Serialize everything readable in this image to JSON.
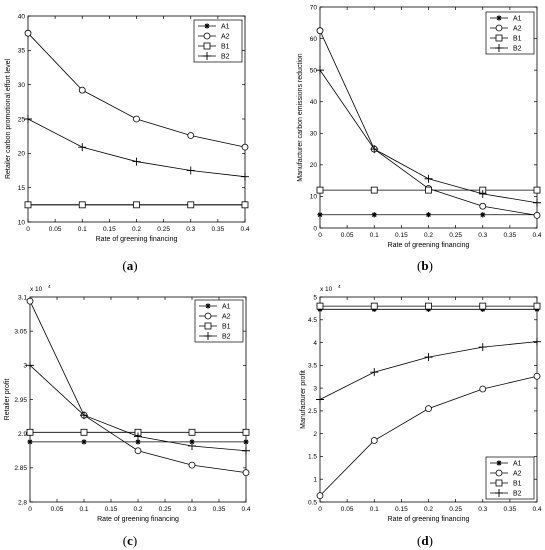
{
  "chart_data": [
    {
      "type": "line",
      "panel_label": "(a)",
      "xlabel": "Rate of greening financing",
      "ylabel": "Retailer carbon promotional effort level",
      "x": [
        0,
        0.1,
        0.2,
        0.3,
        0.4
      ],
      "xlim": [
        0,
        0.4
      ],
      "ylim": [
        10,
        40
      ],
      "xticks": [
        "0",
        "0.05",
        "0.1",
        "0.15",
        "0.2",
        "0.25",
        "0.3",
        "0.35",
        "0.4"
      ],
      "yticks": [
        "10",
        "15",
        "20",
        "25",
        "30",
        "35",
        "40"
      ],
      "exponent": "",
      "legend": "top-right",
      "grid": false,
      "series": [
        {
          "name": "A1",
          "marker": "star",
          "values": [
            12.5,
            12.5,
            12.5,
            12.5,
            12.5
          ]
        },
        {
          "name": "A2",
          "marker": "circle",
          "values": [
            37.5,
            29.2,
            25.0,
            22.6,
            20.9
          ]
        },
        {
          "name": "B1",
          "marker": "square",
          "values": [
            12.5,
            12.5,
            12.5,
            12.5,
            12.5
          ]
        },
        {
          "name": "B2",
          "marker": "plus",
          "values": [
            25.0,
            20.9,
            18.8,
            17.5,
            16.6
          ]
        }
      ]
    },
    {
      "type": "line",
      "panel_label": "(b)",
      "xlabel": "Rate of greening financing",
      "ylabel": "Manufacturer carbon emissions reduction",
      "x": [
        0,
        0.1,
        0.2,
        0.3,
        0.4
      ],
      "xlim": [
        0,
        0.4
      ],
      "ylim": [
        0,
        70
      ],
      "xticks": [
        "0",
        "0.05",
        "0.1",
        "0.15",
        "0.2",
        "0.25",
        "0.3",
        "0.35",
        "0.4"
      ],
      "yticks": [
        "0",
        "10",
        "20",
        "30",
        "40",
        "50",
        "60",
        "70"
      ],
      "exponent": "",
      "legend": "top-right",
      "grid": false,
      "series": [
        {
          "name": "A1",
          "marker": "star",
          "values": [
            4.2,
            4.2,
            4.2,
            4.2,
            4.2
          ]
        },
        {
          "name": "A2",
          "marker": "circle",
          "values": [
            62.5,
            25.0,
            12.5,
            6.9,
            4.0
          ]
        },
        {
          "name": "B1",
          "marker": "square",
          "values": [
            12.0,
            12.0,
            12.0,
            12.0,
            12.0
          ]
        },
        {
          "name": "B2",
          "marker": "plus",
          "values": [
            50.0,
            25.0,
            15.6,
            10.8,
            8.0
          ]
        }
      ]
    },
    {
      "type": "line",
      "panel_label": "(c)",
      "xlabel": "Rate of greening financing",
      "ylabel": "Retailer profit",
      "x": [
        0,
        0.1,
        0.2,
        0.3,
        0.4
      ],
      "xlim": [
        0,
        0.4
      ],
      "ylim": [
        2.8,
        3.1
      ],
      "xticks": [
        "0",
        "0.05",
        "0.1",
        "0.15",
        "0.2",
        "0.25",
        "0.3",
        "0.35",
        "0.4"
      ],
      "yticks": [
        "2.8",
        "2.85",
        "2.9",
        "2.95",
        "3",
        "3.05",
        "3.1"
      ],
      "exponent": "x 10",
      "exponent_power": "4",
      "legend": "top-right",
      "grid": false,
      "series": [
        {
          "name": "A1",
          "marker": "star",
          "values": [
            2.888,
            2.888,
            2.888,
            2.888,
            2.888
          ]
        },
        {
          "name": "A2",
          "marker": "circle",
          "values": [
            3.094,
            2.927,
            2.875,
            2.854,
            2.843
          ]
        },
        {
          "name": "B1",
          "marker": "square",
          "values": [
            2.902,
            2.902,
            2.902,
            2.902,
            2.902
          ]
        },
        {
          "name": "B2",
          "marker": "plus",
          "values": [
            3.0,
            2.927,
            2.896,
            2.882,
            2.875
          ]
        }
      ]
    },
    {
      "type": "line",
      "panel_label": "(d)",
      "xlabel": "Rate of greening financing",
      "ylabel": "Manufacturer profit",
      "x": [
        0,
        0.1,
        0.2,
        0.3,
        0.4
      ],
      "xlim": [
        0,
        0.4
      ],
      "ylim": [
        0.5,
        5
      ],
      "xticks": [
        "0",
        "0.05",
        "0.1",
        "0.15",
        "0.2",
        "0.25",
        "0.3",
        "0.35",
        "0.4"
      ],
      "yticks": [
        "0.5",
        "1",
        "1.5",
        "2",
        "2.5",
        "3",
        "3.5",
        "4",
        "4.5",
        "5"
      ],
      "exponent": "x 10",
      "exponent_power": "4",
      "legend": "bottom-right",
      "grid": false,
      "series": [
        {
          "name": "A1",
          "marker": "star",
          "values": [
            4.73,
            4.73,
            4.73,
            4.73,
            4.73
          ]
        },
        {
          "name": "A2",
          "marker": "circle",
          "values": [
            0.64,
            1.85,
            2.55,
            2.98,
            3.26
          ]
        },
        {
          "name": "B1",
          "marker": "square",
          "values": [
            4.8,
            4.8,
            4.8,
            4.8,
            4.8
          ]
        },
        {
          "name": "B2",
          "marker": "plus",
          "values": [
            2.75,
            3.35,
            3.68,
            3.9,
            4.02
          ]
        }
      ]
    }
  ]
}
